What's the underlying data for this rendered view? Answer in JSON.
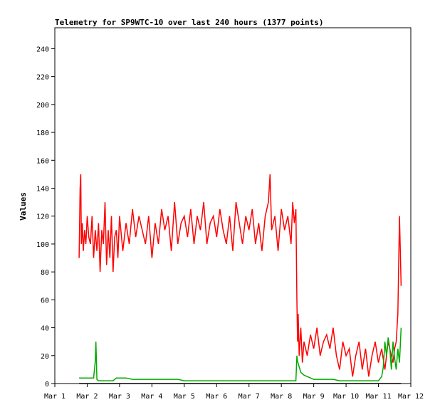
{
  "chart_data": {
    "type": "line",
    "title": "Telemetry for SP9WTC-10 over last 240 hours (1377 points)",
    "ylabel": "Values",
    "xlabel": "",
    "ylim": [
      0,
      255
    ],
    "y_ticks": [
      0,
      20,
      40,
      60,
      80,
      100,
      120,
      140,
      160,
      180,
      200,
      220,
      240
    ],
    "xlim": [
      0,
      11
    ],
    "x_ticks": [
      {
        "x": 0,
        "label": "Mar 1"
      },
      {
        "x": 1,
        "label": "Mar 2"
      },
      {
        "x": 2,
        "label": "Mar 3"
      },
      {
        "x": 3,
        "label": "Mar 4"
      },
      {
        "x": 4,
        "label": "Mar 5"
      },
      {
        "x": 5,
        "label": "Mar 6"
      },
      {
        "x": 6,
        "label": "Mar 7"
      },
      {
        "x": 7,
        "label": "Mar 8"
      },
      {
        "x": 8,
        "label": "Mar 9"
      },
      {
        "x": 9,
        "label": "Mar 10"
      },
      {
        "x": 10,
        "label": "Mar 11"
      },
      {
        "x": 11,
        "label": "Mar 12"
      }
    ],
    "grid": false,
    "series": [
      {
        "color": "#ff0000",
        "x": [
          0.75,
          0.78,
          0.8,
          0.82,
          0.85,
          0.88,
          0.92,
          0.96,
          1.0,
          1.05,
          1.1,
          1.15,
          1.2,
          1.25,
          1.3,
          1.35,
          1.4,
          1.45,
          1.5,
          1.55,
          1.6,
          1.65,
          1.7,
          1.75,
          1.8,
          1.85,
          1.9,
          1.95,
          2.0,
          2.1,
          2.2,
          2.3,
          2.4,
          2.5,
          2.6,
          2.7,
          2.8,
          2.9,
          3.0,
          3.1,
          3.2,
          3.3,
          3.4,
          3.5,
          3.6,
          3.7,
          3.8,
          3.9,
          4.0,
          4.1,
          4.2,
          4.3,
          4.4,
          4.5,
          4.6,
          4.7,
          4.8,
          4.9,
          5.0,
          5.1,
          5.2,
          5.3,
          5.4,
          5.5,
          5.6,
          5.7,
          5.8,
          5.9,
          6.0,
          6.1,
          6.2,
          6.3,
          6.4,
          6.5,
          6.6,
          6.65,
          6.7,
          6.8,
          6.9,
          7.0,
          7.1,
          7.2,
          7.3,
          7.35,
          7.4,
          7.45,
          7.48,
          7.5,
          7.52,
          7.55,
          7.6,
          7.65,
          7.7,
          7.8,
          7.9,
          8.0,
          8.1,
          8.2,
          8.3,
          8.4,
          8.5,
          8.6,
          8.7,
          8.8,
          8.9,
          9.0,
          9.1,
          9.2,
          9.3,
          9.4,
          9.5,
          9.6,
          9.7,
          9.8,
          9.9,
          10.0,
          10.1,
          10.2,
          10.3,
          10.4,
          10.45,
          10.5,
          10.55,
          10.6,
          10.65,
          10.7
        ],
        "y": [
          90,
          140,
          150,
          100,
          115,
          95,
          110,
          100,
          120,
          105,
          100,
          120,
          90,
          110,
          95,
          115,
          80,
          110,
          100,
          130,
          85,
          110,
          90,
          120,
          80,
          105,
          110,
          90,
          120,
          95,
          115,
          100,
          125,
          105,
          120,
          110,
          100,
          120,
          90,
          115,
          100,
          125,
          110,
          120,
          95,
          130,
          100,
          115,
          120,
          105,
          125,
          100,
          120,
          110,
          130,
          100,
          115,
          120,
          105,
          125,
          110,
          100,
          120,
          95,
          130,
          115,
          100,
          120,
          110,
          125,
          100,
          115,
          95,
          120,
          130,
          150,
          110,
          120,
          95,
          125,
          110,
          120,
          100,
          130,
          115,
          125,
          60,
          30,
          50,
          20,
          40,
          15,
          30,
          20,
          35,
          25,
          40,
          20,
          30,
          35,
          25,
          40,
          20,
          10,
          30,
          20,
          25,
          5,
          20,
          30,
          10,
          25,
          5,
          20,
          30,
          15,
          25,
          10,
          30,
          20,
          15,
          25,
          30,
          50,
          120,
          70
        ]
      },
      {
        "color": "#00aa00",
        "x": [
          0.75,
          1.0,
          1.2,
          1.25,
          1.27,
          1.3,
          1.35,
          1.4,
          1.5,
          1.6,
          1.7,
          1.8,
          1.9,
          2.0,
          2.2,
          2.4,
          2.6,
          2.8,
          3.0,
          3.2,
          3.4,
          3.6,
          3.8,
          4.0,
          4.5,
          5.0,
          5.5,
          6.0,
          6.5,
          7.0,
          7.2,
          7.4,
          7.45,
          7.48,
          7.5,
          7.55,
          7.6,
          7.7,
          7.8,
          7.9,
          8.0,
          8.2,
          8.4,
          8.6,
          8.8,
          9.0,
          9.2,
          9.4,
          9.6,
          9.8,
          10.0,
          10.1,
          10.15,
          10.2,
          10.25,
          10.3,
          10.35,
          10.4,
          10.45,
          10.5,
          10.55,
          10.6,
          10.65,
          10.7
        ],
        "y": [
          4,
          4,
          4,
          16,
          30,
          3,
          2,
          2,
          2,
          2,
          2,
          2,
          4,
          4,
          4,
          3,
          3,
          3,
          3,
          3,
          3,
          3,
          3,
          2,
          2,
          2,
          2,
          2,
          2,
          2,
          2,
          2,
          2,
          20,
          16,
          12,
          8,
          6,
          5,
          4,
          3,
          3,
          3,
          3,
          2,
          2,
          2,
          2,
          2,
          2,
          2,
          5,
          12,
          30,
          20,
          33,
          25,
          10,
          30,
          18,
          10,
          25,
          15,
          40
        ]
      },
      {
        "color": "#000000",
        "x": [
          0.75,
          10.7
        ],
        "y": [
          0,
          0
        ]
      }
    ]
  }
}
